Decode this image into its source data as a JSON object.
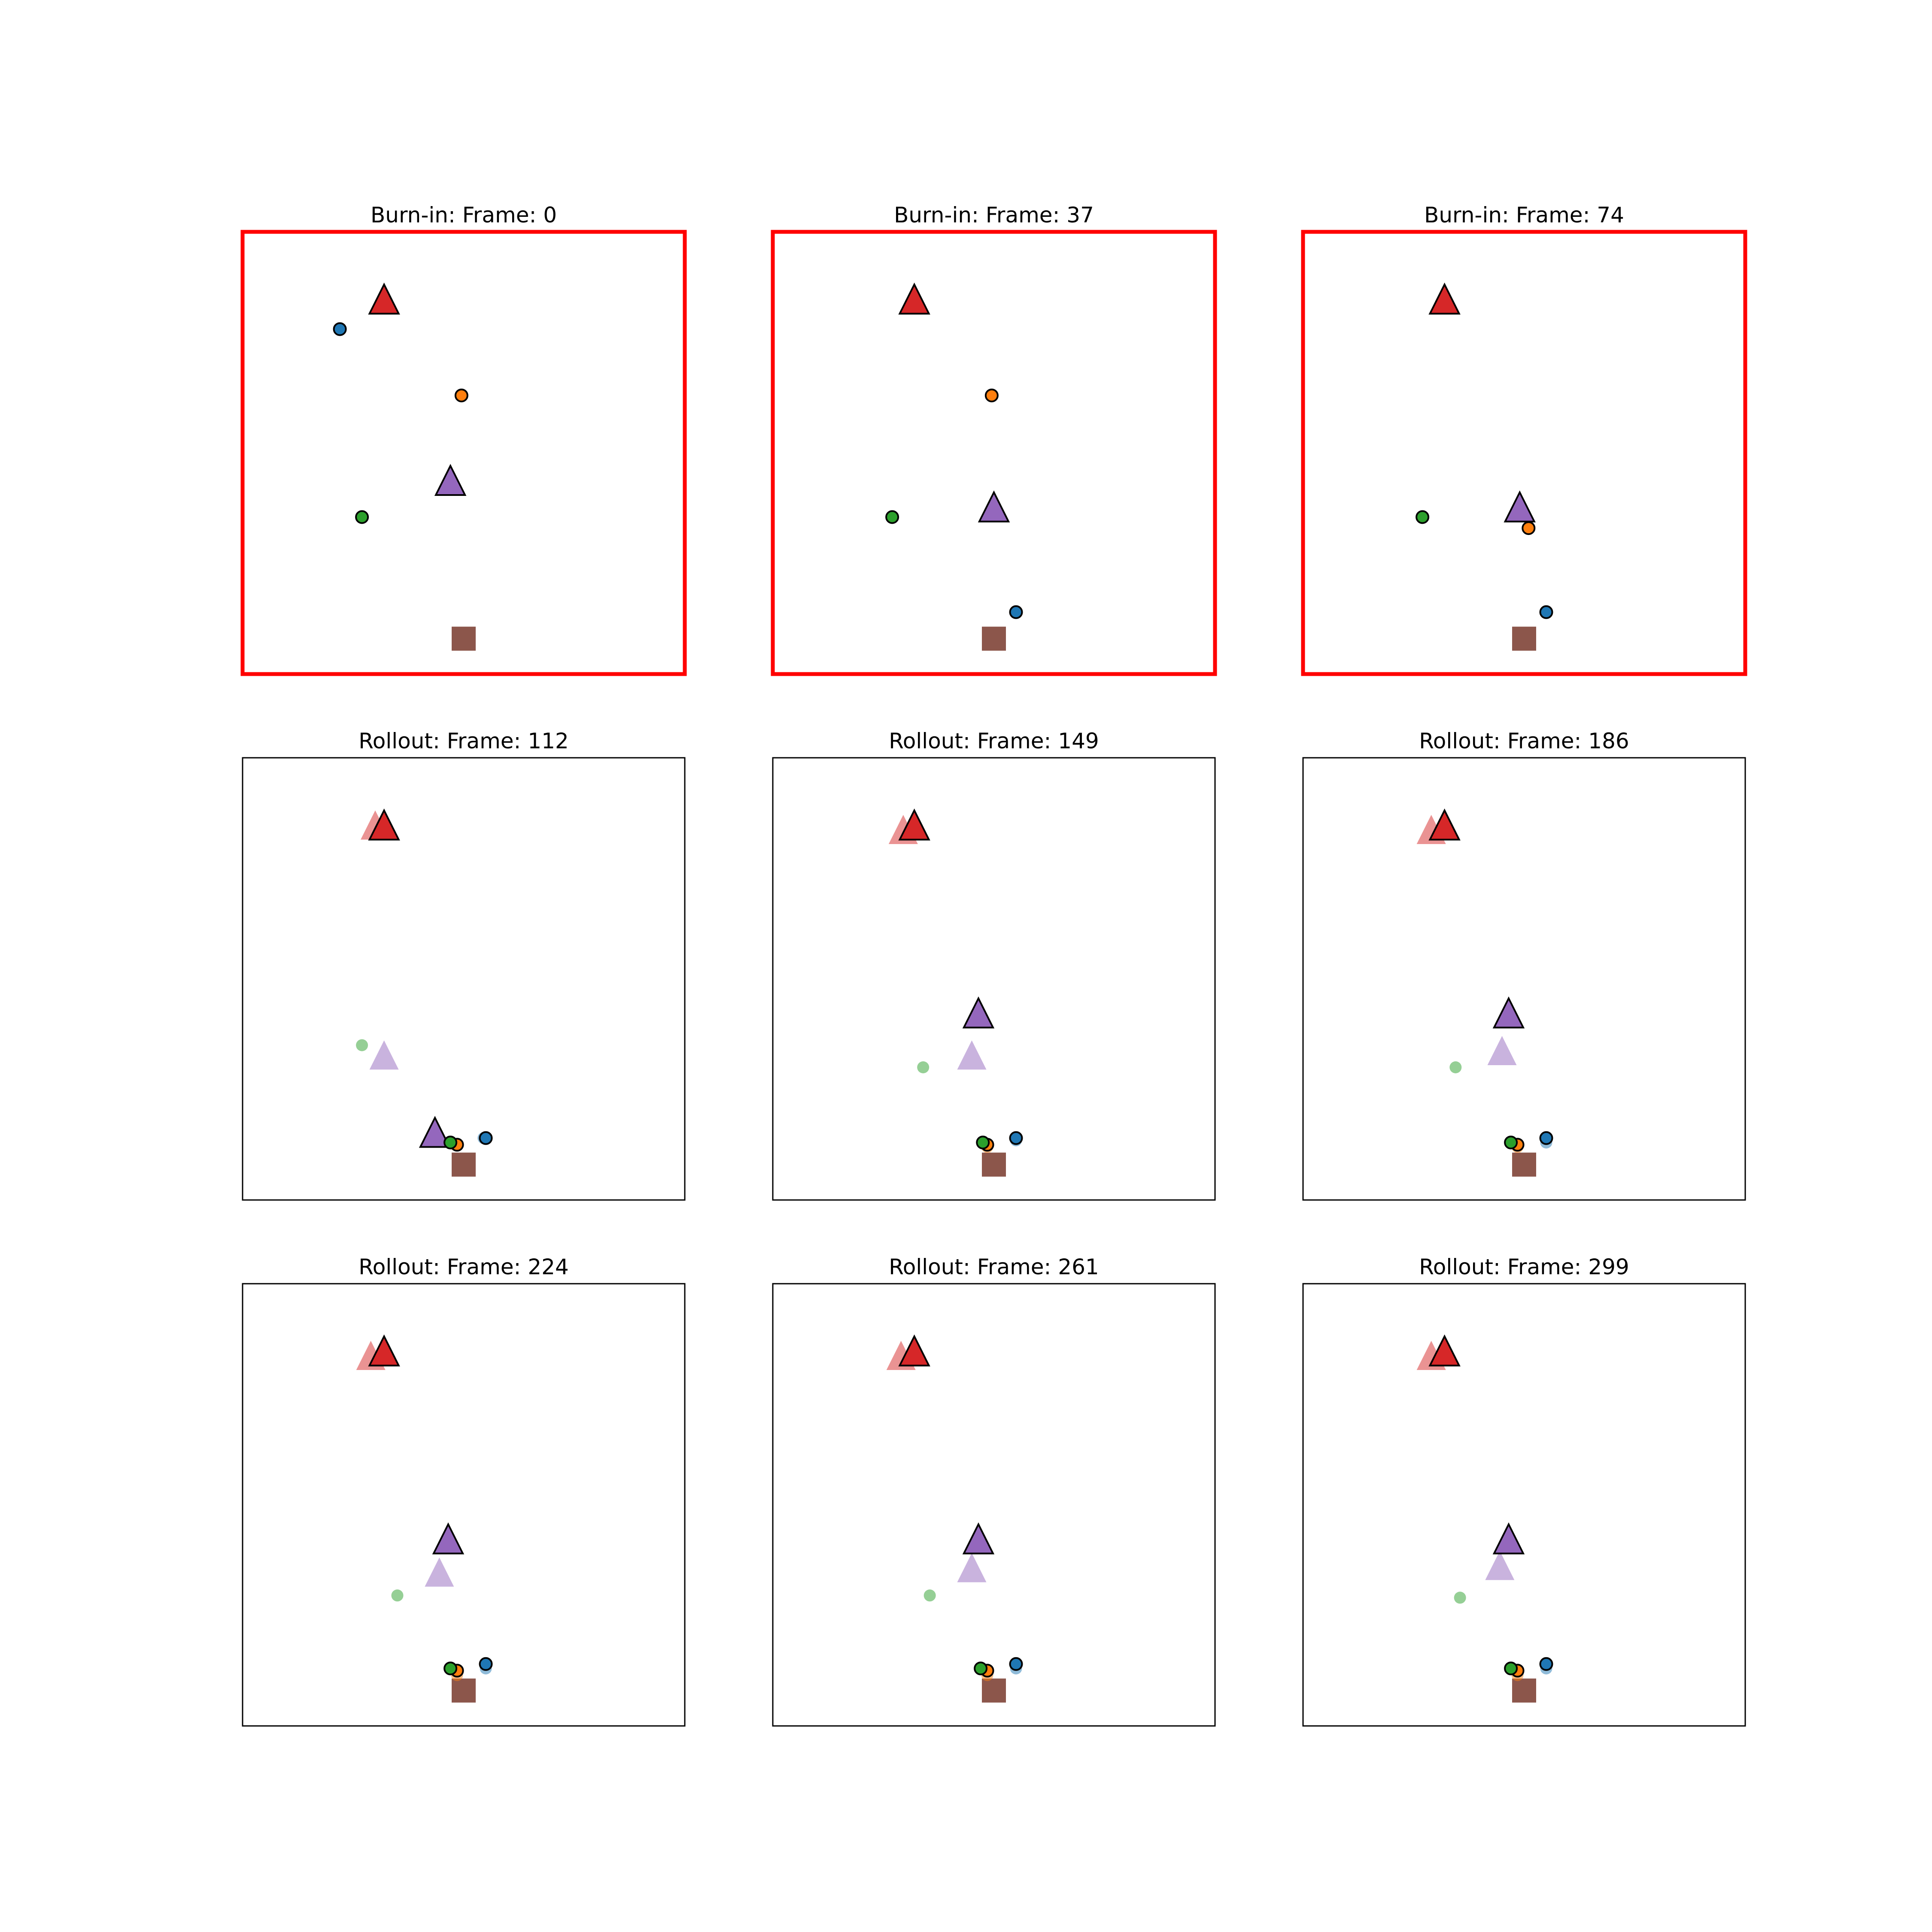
{
  "figure": {
    "colors": {
      "blue": "#1f77b4",
      "orange": "#ff7f0e",
      "green": "#2ca02c",
      "red": "#d62728",
      "purple": "#9467bd",
      "brown": "#8c564b",
      "burn_in_frame": "#ff0000",
      "rollout_frame": "#000000"
    }
  },
  "chart_data": [
    {
      "type": "scatter",
      "title": "Burn-in: Frame: 0",
      "phase": "burn-in",
      "xlim": [
        0,
        1
      ],
      "ylim": [
        0,
        1
      ],
      "grid": false,
      "axes_visible": false,
      "ground_truth": [
        {
          "shape": "triangle",
          "color": "red",
          "x": 0.32,
          "y": 0.84
        },
        {
          "shape": "triangle",
          "color": "purple",
          "x": 0.47,
          "y": 0.43
        },
        {
          "shape": "circle",
          "color": "blue",
          "x": 0.22,
          "y": 0.78
        },
        {
          "shape": "circle",
          "color": "orange",
          "x": 0.495,
          "y": 0.63
        },
        {
          "shape": "circle",
          "color": "green",
          "x": 0.27,
          "y": 0.355
        },
        {
          "shape": "square",
          "color": "brown",
          "x": 0.5,
          "y": 0.08
        }
      ],
      "predicted": []
    },
    {
      "type": "scatter",
      "title": "Burn-in: Frame: 37",
      "phase": "burn-in",
      "xlim": [
        0,
        1
      ],
      "ylim": [
        0,
        1
      ],
      "grid": false,
      "axes_visible": false,
      "ground_truth": [
        {
          "shape": "triangle",
          "color": "red",
          "x": 0.32,
          "y": 0.84
        },
        {
          "shape": "triangle",
          "color": "purple",
          "x": 0.5,
          "y": 0.37
        },
        {
          "shape": "circle",
          "color": "blue",
          "x": 0.55,
          "y": 0.14
        },
        {
          "shape": "circle",
          "color": "orange",
          "x": 0.495,
          "y": 0.63
        },
        {
          "shape": "circle",
          "color": "green",
          "x": 0.27,
          "y": 0.355
        },
        {
          "shape": "square",
          "color": "brown",
          "x": 0.5,
          "y": 0.08
        }
      ],
      "predicted": []
    },
    {
      "type": "scatter",
      "title": "Burn-in: Frame: 74",
      "phase": "burn-in",
      "xlim": [
        0,
        1
      ],
      "ylim": [
        0,
        1
      ],
      "grid": false,
      "axes_visible": false,
      "ground_truth": [
        {
          "shape": "triangle",
          "color": "red",
          "x": 0.32,
          "y": 0.84
        },
        {
          "shape": "triangle",
          "color": "purple",
          "x": 0.49,
          "y": 0.37
        },
        {
          "shape": "circle",
          "color": "blue",
          "x": 0.55,
          "y": 0.14
        },
        {
          "shape": "circle",
          "color": "orange",
          "x": 0.51,
          "y": 0.33
        },
        {
          "shape": "circle",
          "color": "green",
          "x": 0.27,
          "y": 0.355
        },
        {
          "shape": "square",
          "color": "brown",
          "x": 0.5,
          "y": 0.08
        }
      ],
      "predicted": []
    },
    {
      "type": "scatter",
      "title": "Rollout: Frame: 112",
      "phase": "rollout",
      "xlim": [
        0,
        1
      ],
      "ylim": [
        0,
        1
      ],
      "grid": false,
      "axes_visible": false,
      "ground_truth": [
        {
          "shape": "triangle",
          "color": "red",
          "x": 0.3,
          "y": 0.84
        },
        {
          "shape": "triangle",
          "color": "purple",
          "x": 0.32,
          "y": 0.32
        },
        {
          "shape": "circle",
          "color": "blue",
          "x": 0.545,
          "y": 0.14
        },
        {
          "shape": "circle",
          "color": "orange",
          "x": 0.48,
          "y": 0.125
        },
        {
          "shape": "circle",
          "color": "green",
          "x": 0.27,
          "y": 0.35
        },
        {
          "shape": "square",
          "color": "brown",
          "x": 0.5,
          "y": 0.08
        }
      ],
      "predicted": [
        {
          "shape": "triangle",
          "color": "red",
          "x": 0.32,
          "y": 0.84
        },
        {
          "shape": "triangle",
          "color": "purple",
          "x": 0.435,
          "y": 0.145
        },
        {
          "shape": "circle",
          "color": "blue",
          "x": 0.55,
          "y": 0.14
        },
        {
          "shape": "circle",
          "color": "orange",
          "x": 0.485,
          "y": 0.125
        },
        {
          "shape": "circle",
          "color": "green",
          "x": 0.47,
          "y": 0.13
        },
        {
          "shape": "square",
          "color": "brown",
          "x": 0.5,
          "y": 0.08
        }
      ]
    },
    {
      "type": "scatter",
      "title": "Rollout: Frame: 149",
      "phase": "rollout",
      "xlim": [
        0,
        1
      ],
      "ylim": [
        0,
        1
      ],
      "grid": false,
      "axes_visible": false,
      "ground_truth": [
        {
          "shape": "triangle",
          "color": "red",
          "x": 0.295,
          "y": 0.83
        },
        {
          "shape": "triangle",
          "color": "purple",
          "x": 0.45,
          "y": 0.32
        },
        {
          "shape": "circle",
          "color": "blue",
          "x": 0.55,
          "y": 0.135
        },
        {
          "shape": "circle",
          "color": "orange",
          "x": 0.485,
          "y": 0.12
        },
        {
          "shape": "circle",
          "color": "green",
          "x": 0.34,
          "y": 0.3
        },
        {
          "shape": "square",
          "color": "brown",
          "x": 0.5,
          "y": 0.08
        }
      ],
      "predicted": [
        {
          "shape": "triangle",
          "color": "red",
          "x": 0.32,
          "y": 0.84
        },
        {
          "shape": "triangle",
          "color": "purple",
          "x": 0.465,
          "y": 0.415
        },
        {
          "shape": "circle",
          "color": "blue",
          "x": 0.55,
          "y": 0.14
        },
        {
          "shape": "circle",
          "color": "orange",
          "x": 0.485,
          "y": 0.125
        },
        {
          "shape": "circle",
          "color": "green",
          "x": 0.475,
          "y": 0.13
        },
        {
          "shape": "square",
          "color": "brown",
          "x": 0.5,
          "y": 0.08
        }
      ]
    },
    {
      "type": "scatter",
      "title": "Rollout: Frame: 186",
      "phase": "rollout",
      "xlim": [
        0,
        1
      ],
      "ylim": [
        0,
        1
      ],
      "grid": false,
      "axes_visible": false,
      "ground_truth": [
        {
          "shape": "triangle",
          "color": "red",
          "x": 0.29,
          "y": 0.83
        },
        {
          "shape": "triangle",
          "color": "purple",
          "x": 0.45,
          "y": 0.33
        },
        {
          "shape": "circle",
          "color": "blue",
          "x": 0.55,
          "y": 0.13
        },
        {
          "shape": "circle",
          "color": "orange",
          "x": 0.485,
          "y": 0.12
        },
        {
          "shape": "circle",
          "color": "green",
          "x": 0.345,
          "y": 0.3
        },
        {
          "shape": "square",
          "color": "brown",
          "x": 0.5,
          "y": 0.08
        }
      ],
      "predicted": [
        {
          "shape": "triangle",
          "color": "red",
          "x": 0.32,
          "y": 0.84
        },
        {
          "shape": "triangle",
          "color": "purple",
          "x": 0.465,
          "y": 0.415
        },
        {
          "shape": "circle",
          "color": "blue",
          "x": 0.55,
          "y": 0.14
        },
        {
          "shape": "circle",
          "color": "orange",
          "x": 0.485,
          "y": 0.125
        },
        {
          "shape": "circle",
          "color": "green",
          "x": 0.47,
          "y": 0.13
        },
        {
          "shape": "square",
          "color": "brown",
          "x": 0.5,
          "y": 0.08
        }
      ]
    },
    {
      "type": "scatter",
      "title": "Rollout: Frame: 224",
      "phase": "rollout",
      "xlim": [
        0,
        1
      ],
      "ylim": [
        0,
        1
      ],
      "grid": false,
      "axes_visible": false,
      "ground_truth": [
        {
          "shape": "triangle",
          "color": "red",
          "x": 0.29,
          "y": 0.83
        },
        {
          "shape": "triangle",
          "color": "purple",
          "x": 0.445,
          "y": 0.34
        },
        {
          "shape": "circle",
          "color": "blue",
          "x": 0.55,
          "y": 0.13
        },
        {
          "shape": "circle",
          "color": "orange",
          "x": 0.485,
          "y": 0.115
        },
        {
          "shape": "circle",
          "color": "green",
          "x": 0.35,
          "y": 0.295
        },
        {
          "shape": "square",
          "color": "brown",
          "x": 0.5,
          "y": 0.08
        }
      ],
      "predicted": [
        {
          "shape": "triangle",
          "color": "red",
          "x": 0.32,
          "y": 0.84
        },
        {
          "shape": "triangle",
          "color": "purple",
          "x": 0.465,
          "y": 0.415
        },
        {
          "shape": "circle",
          "color": "blue",
          "x": 0.55,
          "y": 0.14
        },
        {
          "shape": "circle",
          "color": "orange",
          "x": 0.485,
          "y": 0.125
        },
        {
          "shape": "circle",
          "color": "green",
          "x": 0.47,
          "y": 0.13
        },
        {
          "shape": "square",
          "color": "brown",
          "x": 0.5,
          "y": 0.08
        }
      ]
    },
    {
      "type": "scatter",
      "title": "Rollout: Frame: 261",
      "phase": "rollout",
      "xlim": [
        0,
        1
      ],
      "ylim": [
        0,
        1
      ],
      "grid": false,
      "axes_visible": false,
      "ground_truth": [
        {
          "shape": "triangle",
          "color": "red",
          "x": 0.29,
          "y": 0.83
        },
        {
          "shape": "triangle",
          "color": "purple",
          "x": 0.45,
          "y": 0.35
        },
        {
          "shape": "circle",
          "color": "blue",
          "x": 0.55,
          "y": 0.13
        },
        {
          "shape": "circle",
          "color": "orange",
          "x": 0.485,
          "y": 0.115
        },
        {
          "shape": "circle",
          "color": "green",
          "x": 0.355,
          "y": 0.295
        },
        {
          "shape": "square",
          "color": "brown",
          "x": 0.5,
          "y": 0.08
        }
      ],
      "predicted": [
        {
          "shape": "triangle",
          "color": "red",
          "x": 0.32,
          "y": 0.84
        },
        {
          "shape": "triangle",
          "color": "purple",
          "x": 0.465,
          "y": 0.415
        },
        {
          "shape": "circle",
          "color": "blue",
          "x": 0.55,
          "y": 0.14
        },
        {
          "shape": "circle",
          "color": "orange",
          "x": 0.485,
          "y": 0.125
        },
        {
          "shape": "circle",
          "color": "green",
          "x": 0.47,
          "y": 0.13
        },
        {
          "shape": "square",
          "color": "brown",
          "x": 0.5,
          "y": 0.08
        }
      ]
    },
    {
      "type": "scatter",
      "title": "Rollout: Frame: 299",
      "phase": "rollout",
      "xlim": [
        0,
        1
      ],
      "ylim": [
        0,
        1
      ],
      "grid": false,
      "axes_visible": false,
      "ground_truth": [
        {
          "shape": "triangle",
          "color": "red",
          "x": 0.29,
          "y": 0.83
        },
        {
          "shape": "triangle",
          "color": "purple",
          "x": 0.445,
          "y": 0.355
        },
        {
          "shape": "circle",
          "color": "blue",
          "x": 0.55,
          "y": 0.13
        },
        {
          "shape": "circle",
          "color": "orange",
          "x": 0.485,
          "y": 0.115
        },
        {
          "shape": "circle",
          "color": "green",
          "x": 0.355,
          "y": 0.29
        },
        {
          "shape": "square",
          "color": "brown",
          "x": 0.5,
          "y": 0.08
        }
      ],
      "predicted": [
        {
          "shape": "triangle",
          "color": "red",
          "x": 0.32,
          "y": 0.84
        },
        {
          "shape": "triangle",
          "color": "purple",
          "x": 0.465,
          "y": 0.415
        },
        {
          "shape": "circle",
          "color": "blue",
          "x": 0.55,
          "y": 0.14
        },
        {
          "shape": "circle",
          "color": "orange",
          "x": 0.485,
          "y": 0.125
        },
        {
          "shape": "circle",
          "color": "green",
          "x": 0.47,
          "y": 0.13
        },
        {
          "shape": "square",
          "color": "brown",
          "x": 0.5,
          "y": 0.08
        }
      ]
    }
  ]
}
